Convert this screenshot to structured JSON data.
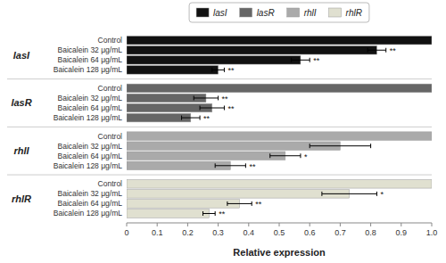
{
  "chart_data": {
    "type": "bar",
    "orientation": "horizontal",
    "xlabel": "Relative expression",
    "categories": [
      "Control",
      "Baicalein 32 μg/mL",
      "Baicalein 64 μg/mL",
      "Baicalein 128 μg/mL"
    ],
    "series": [
      {
        "name": "lasI",
        "color": "#111111",
        "values": [
          1.0,
          0.82,
          0.57,
          0.3
        ],
        "errors": [
          0.0,
          0.03,
          0.03,
          0.02
        ],
        "significance": [
          null,
          "**",
          "**",
          "**"
        ]
      },
      {
        "name": "lasR",
        "color": "#666666",
        "values": [
          1.0,
          0.26,
          0.28,
          0.21
        ],
        "errors": [
          0.0,
          0.04,
          0.04,
          0.03
        ],
        "significance": [
          null,
          "**",
          "**",
          "**"
        ]
      },
      {
        "name": "rhlI",
        "color": "#aaaaaa",
        "values": [
          1.0,
          0.7,
          0.52,
          0.34
        ],
        "errors": [
          0.0,
          0.1,
          0.05,
          0.05
        ],
        "significance": [
          null,
          null,
          "*",
          "**"
        ]
      },
      {
        "name": "rhlR",
        "color": "#e0e0d0",
        "values": [
          1.0,
          0.73,
          0.37,
          0.27
        ],
        "errors": [
          0.0,
          0.09,
          0.04,
          0.02
        ],
        "significance": [
          null,
          "*",
          "**",
          "**"
        ]
      }
    ],
    "xlim": [
      0,
      1.0
    ],
    "xticks": [
      0,
      0.1,
      0.2,
      0.3,
      0.4,
      0.5,
      0.6,
      0.7,
      0.8,
      0.9,
      {
        "value": 1.0,
        "label": "1.0"
      }
    ],
    "grid": false,
    "legend": "top"
  }
}
